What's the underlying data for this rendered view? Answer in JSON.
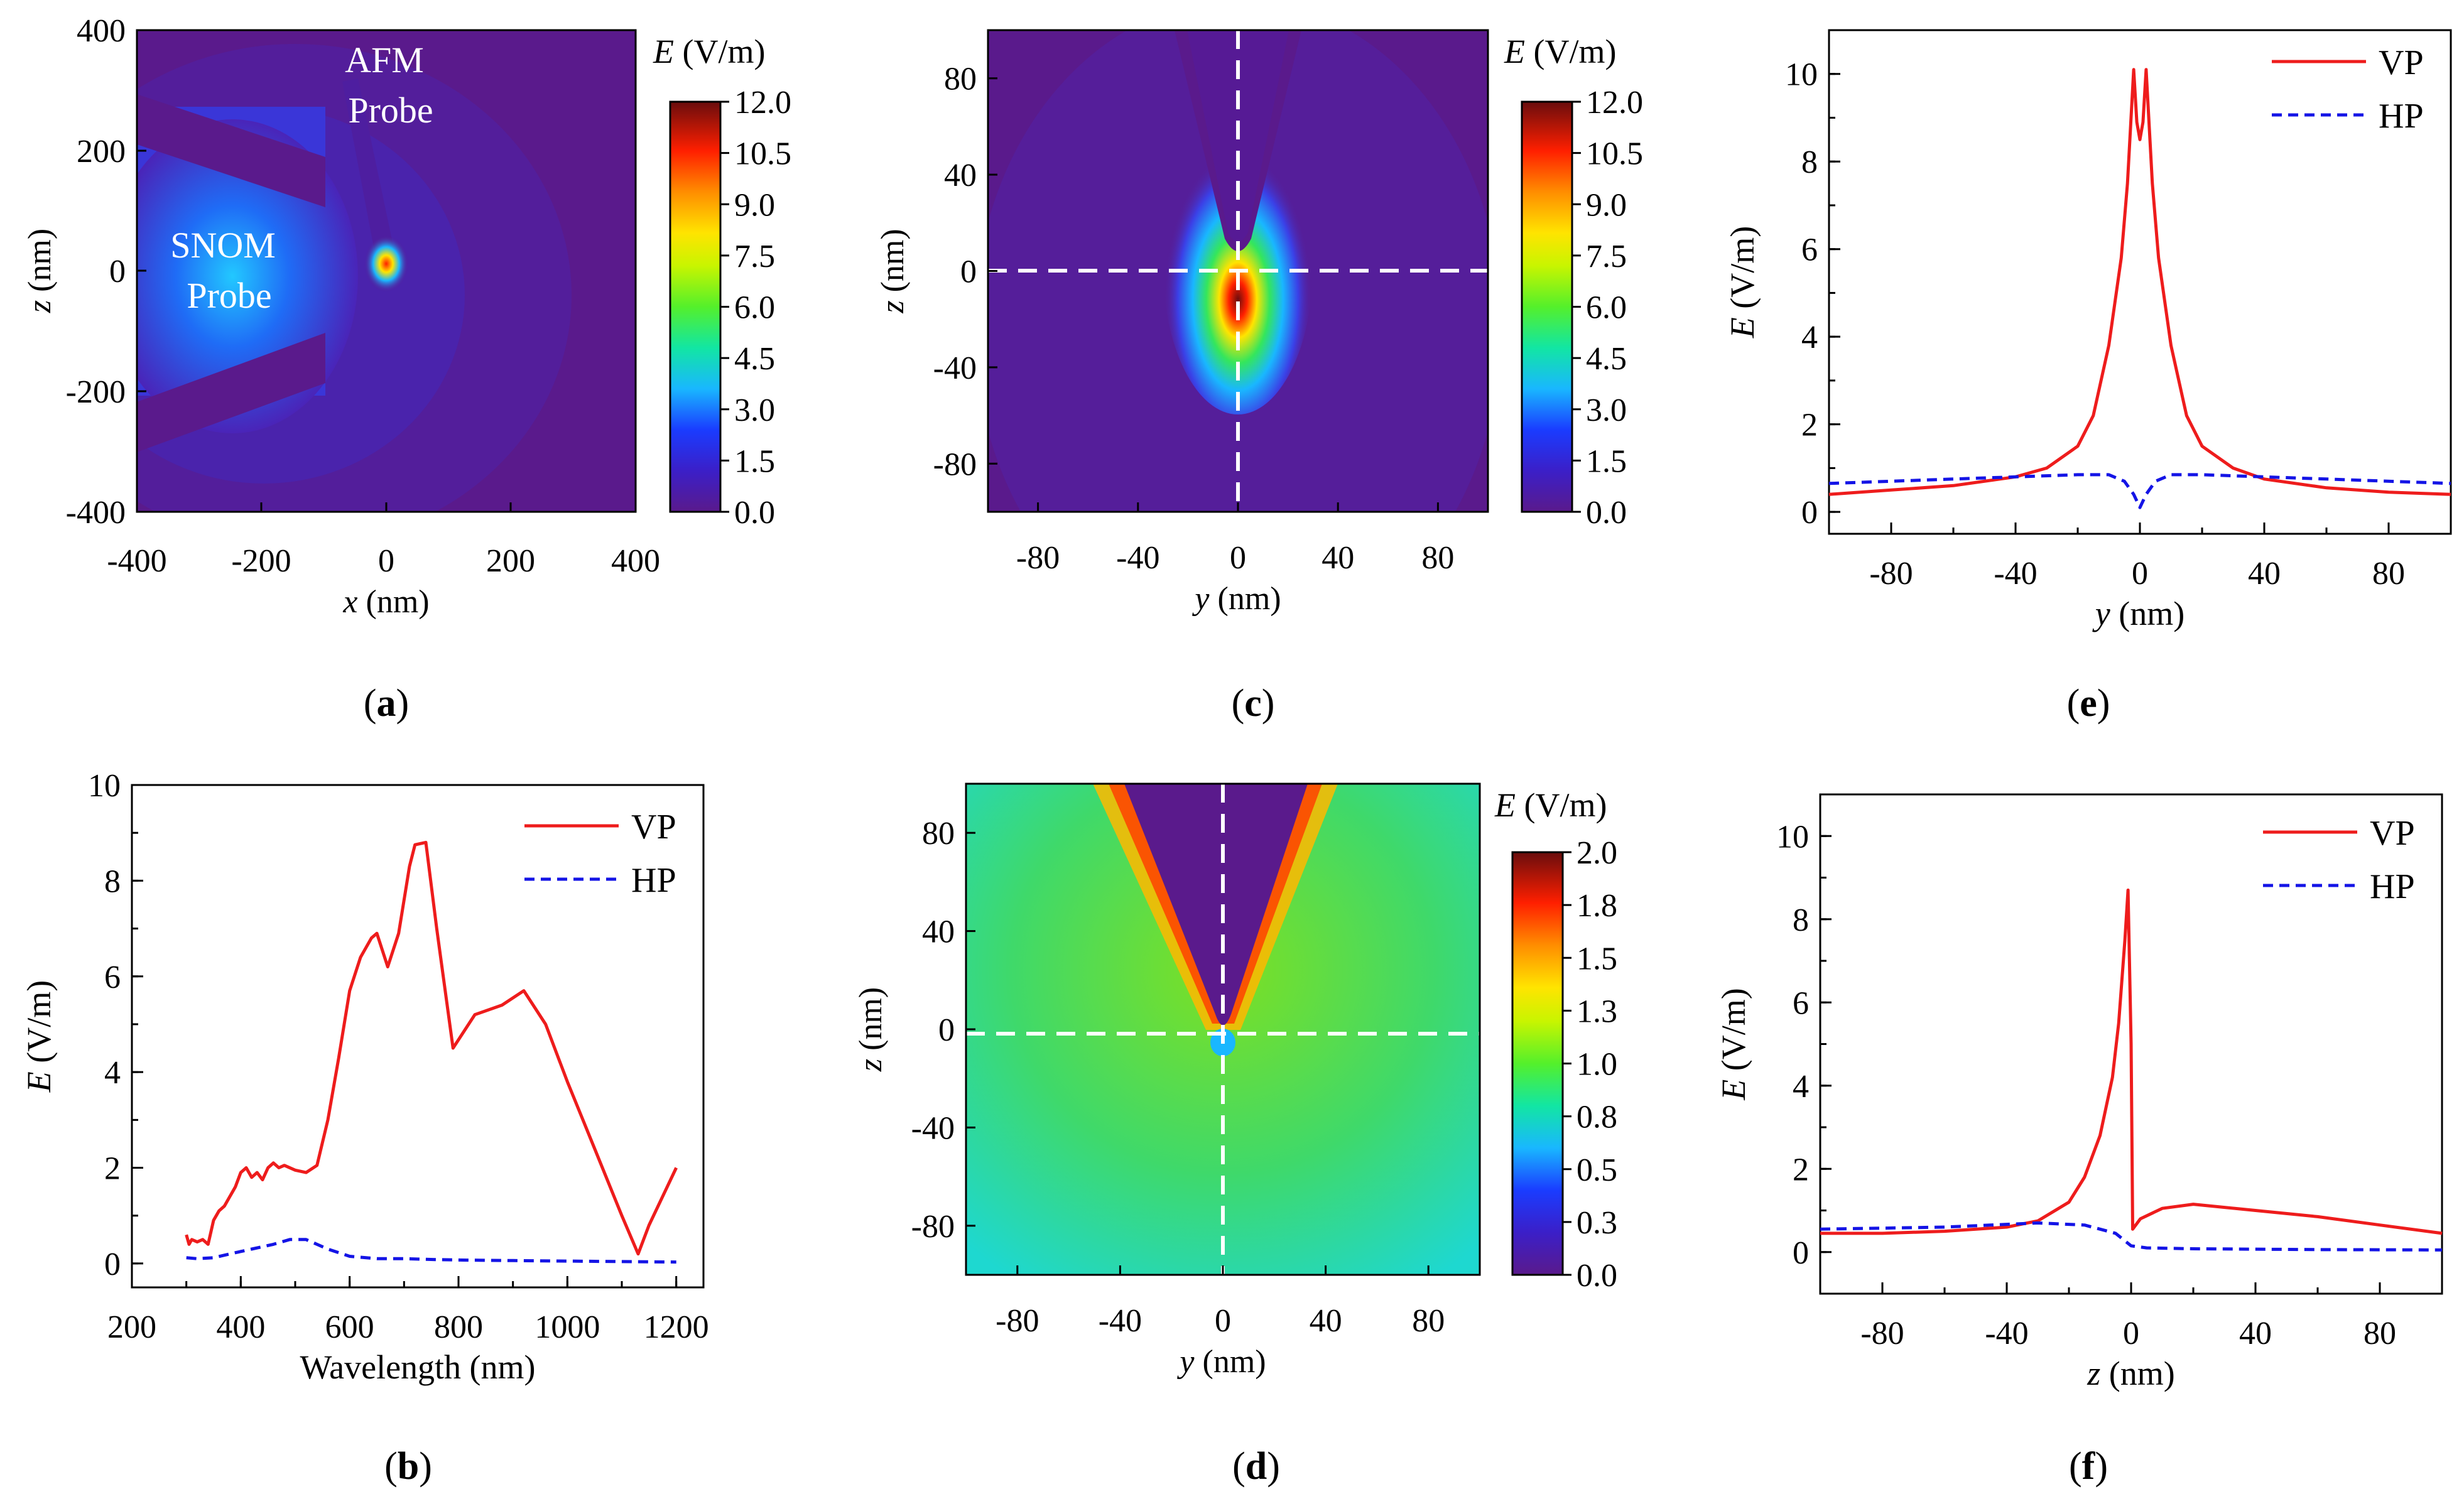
{
  "colors": {
    "vp": "#ee1c1c",
    "hp": "#1414e6",
    "bg": "#5a1a8c"
  },
  "panel_labels": {
    "a": "a",
    "b": "b",
    "c": "c",
    "d": "d",
    "e": "e",
    "f": "f"
  },
  "chart_data": [
    {
      "id": "a",
      "type": "heatmap",
      "xlabel_var": "x",
      "xlabel_unit": " (nm)",
      "ylabel_var": "z",
      "ylabel_unit": " (nm)",
      "xlim": [
        -400,
        400
      ],
      "ylim": [
        -400,
        400
      ],
      "xticks": [
        "-400",
        "-200",
        "0",
        "200",
        "400"
      ],
      "yticks": [
        "-400",
        "-200",
        "0",
        "200",
        "400"
      ],
      "annotations": {
        "snom_1": "SNOM",
        "snom_2": "Probe",
        "afm_1": "AFM",
        "afm_2": "Probe"
      },
      "colorbar": {
        "title_var": "E",
        "title_unit": " (V/m)",
        "ticks": [
          "0.0",
          "1.5",
          "3.0",
          "4.5",
          "6.0",
          "7.5",
          "9.0",
          "10.5",
          "12.0"
        ]
      }
    },
    {
      "id": "c",
      "type": "heatmap",
      "xlabel_var": "y",
      "xlabel_unit": " (nm)",
      "ylabel_var": "z",
      "ylabel_unit": " (nm)",
      "xlim": [
        -100,
        100
      ],
      "ylim": [
        -100,
        100
      ],
      "xticks": [
        "-80",
        "-40",
        "0",
        "40",
        "80"
      ],
      "yticks": [
        "-80",
        "-40",
        "0",
        "40",
        "80"
      ],
      "colorbar": {
        "title_var": "E",
        "title_unit": " (V/m)",
        "ticks": [
          "0.0",
          "1.5",
          "3.0",
          "4.5",
          "6.0",
          "7.5",
          "9.0",
          "10.5",
          "12.0"
        ]
      }
    },
    {
      "id": "d",
      "type": "heatmap",
      "xlabel_var": "y",
      "xlabel_unit": " (nm)",
      "ylabel_var": "z",
      "ylabel_unit": " (nm)",
      "xlim": [
        -100,
        100
      ],
      "ylim": [
        -100,
        100
      ],
      "xticks": [
        "-80",
        "-40",
        "0",
        "40",
        "80"
      ],
      "yticks": [
        "-80",
        "-40",
        "0",
        "40",
        "80"
      ],
      "colorbar": {
        "title_var": "E",
        "title_unit": " (V/m)",
        "ticks": [
          "0.0",
          "0.3",
          "0.5",
          "0.8",
          "1.0",
          "1.3",
          "1.5",
          "1.8",
          "2.0"
        ]
      }
    },
    {
      "id": "b",
      "type": "line",
      "xlabel": "Wavelength (nm)",
      "ylabel_var": "E",
      "ylabel_unit": " (V/m)",
      "xlim": [
        200,
        1250
      ],
      "ylim": [
        -0.5,
        10
      ],
      "xticks": [
        200,
        400,
        600,
        800,
        1000,
        1200
      ],
      "yticks": [
        0,
        2,
        4,
        6,
        8,
        10
      ],
      "legend_position": "top-right",
      "series": [
        {
          "name": "VP",
          "color": "#ee1c1c",
          "dash": "solid",
          "x": [
            300,
            305,
            310,
            320,
            330,
            340,
            350,
            360,
            370,
            380,
            390,
            400,
            410,
            420,
            430,
            440,
            450,
            460,
            470,
            480,
            500,
            520,
            540,
            560,
            580,
            600,
            620,
            640,
            650,
            670,
            690,
            710,
            720,
            740,
            760,
            790,
            830,
            880,
            920,
            960,
            1000,
            1050,
            1100,
            1130,
            1150,
            1200
          ],
          "y": [
            0.6,
            0.4,
            0.5,
            0.45,
            0.5,
            0.4,
            0.9,
            1.1,
            1.2,
            1.4,
            1.6,
            1.9,
            2.0,
            1.8,
            1.9,
            1.75,
            2.0,
            2.1,
            2.0,
            2.05,
            1.95,
            1.9,
            2.05,
            3.0,
            4.3,
            5.7,
            6.4,
            6.8,
            6.9,
            6.2,
            6.9,
            8.3,
            8.75,
            8.8,
            7.0,
            4.5,
            5.2,
            5.4,
            5.7,
            5.0,
            3.8,
            2.4,
            1.0,
            0.2,
            0.8,
            2.0
          ]
        },
        {
          "name": "HP",
          "color": "#1414e6",
          "dash": "dashed",
          "x": [
            300,
            320,
            350,
            380,
            420,
            460,
            490,
            520,
            560,
            600,
            650,
            700,
            760,
            820,
            900,
            1000,
            1100,
            1200
          ],
          "y": [
            0.12,
            0.1,
            0.12,
            0.2,
            0.3,
            0.4,
            0.5,
            0.5,
            0.3,
            0.15,
            0.1,
            0.1,
            0.08,
            0.07,
            0.06,
            0.05,
            0.04,
            0.03
          ]
        }
      ]
    },
    {
      "id": "e",
      "type": "line",
      "xlabel_var": "y",
      "xlabel_unit": " (nm)",
      "ylabel_var": "E",
      "ylabel_unit": " (V/m)",
      "xlim": [
        -100,
        100
      ],
      "ylim": [
        -0.5,
        11
      ],
      "xticks": [
        -80,
        -40,
        0,
        40,
        80
      ],
      "yticks": [
        0,
        2,
        4,
        6,
        8,
        10
      ],
      "legend_position": "top-right",
      "series": [
        {
          "name": "VP",
          "color": "#ee1c1c",
          "dash": "solid",
          "x": [
            -100,
            -80,
            -60,
            -40,
            -30,
            -20,
            -15,
            -10,
            -6,
            -4,
            -2,
            -1,
            0,
            1,
            2,
            4,
            6,
            10,
            15,
            20,
            30,
            40,
            60,
            80,
            100
          ],
          "y": [
            0.4,
            0.5,
            0.6,
            0.8,
            1.0,
            1.5,
            2.2,
            3.8,
            5.8,
            7.5,
            10.1,
            8.9,
            8.5,
            8.9,
            10.1,
            7.5,
            5.8,
            3.8,
            2.2,
            1.5,
            1.0,
            0.75,
            0.55,
            0.45,
            0.4
          ]
        },
        {
          "name": "HP",
          "color": "#1414e6",
          "dash": "dashed",
          "x": [
            -100,
            -60,
            -20,
            -10,
            -5,
            -2,
            0,
            2,
            5,
            10,
            20,
            60,
            100
          ],
          "y": [
            0.65,
            0.75,
            0.85,
            0.85,
            0.7,
            0.4,
            0.1,
            0.4,
            0.7,
            0.85,
            0.85,
            0.75,
            0.65
          ]
        }
      ]
    },
    {
      "id": "f",
      "type": "line",
      "xlabel_var": "z",
      "xlabel_unit": " (nm)",
      "ylabel_var": "E",
      "ylabel_unit": " (V/m)",
      "xlim": [
        -100,
        100
      ],
      "ylim": [
        -1,
        11
      ],
      "xticks": [
        -80,
        -40,
        0,
        40,
        80
      ],
      "yticks": [
        0,
        2,
        4,
        6,
        8,
        10
      ],
      "legend_position": "top-right",
      "series": [
        {
          "name": "VP",
          "color": "#ee1c1c",
          "dash": "solid",
          "x": [
            -100,
            -80,
            -60,
            -40,
            -30,
            -20,
            -15,
            -10,
            -6,
            -4,
            -2,
            -1,
            0,
            0.5,
            3,
            10,
            20,
            40,
            60,
            80,
            100
          ],
          "y": [
            0.45,
            0.45,
            0.5,
            0.6,
            0.75,
            1.2,
            1.8,
            2.8,
            4.2,
            5.5,
            7.5,
            8.7,
            5.0,
            0.55,
            0.8,
            1.05,
            1.15,
            1.0,
            0.85,
            0.65,
            0.45
          ]
        },
        {
          "name": "HP",
          "color": "#1414e6",
          "dash": "dashed",
          "x": [
            -100,
            -60,
            -30,
            -15,
            -5,
            0,
            5,
            20,
            60,
            100
          ],
          "y": [
            0.55,
            0.6,
            0.7,
            0.65,
            0.45,
            0.15,
            0.1,
            0.08,
            0.06,
            0.05
          ]
        }
      ]
    }
  ]
}
